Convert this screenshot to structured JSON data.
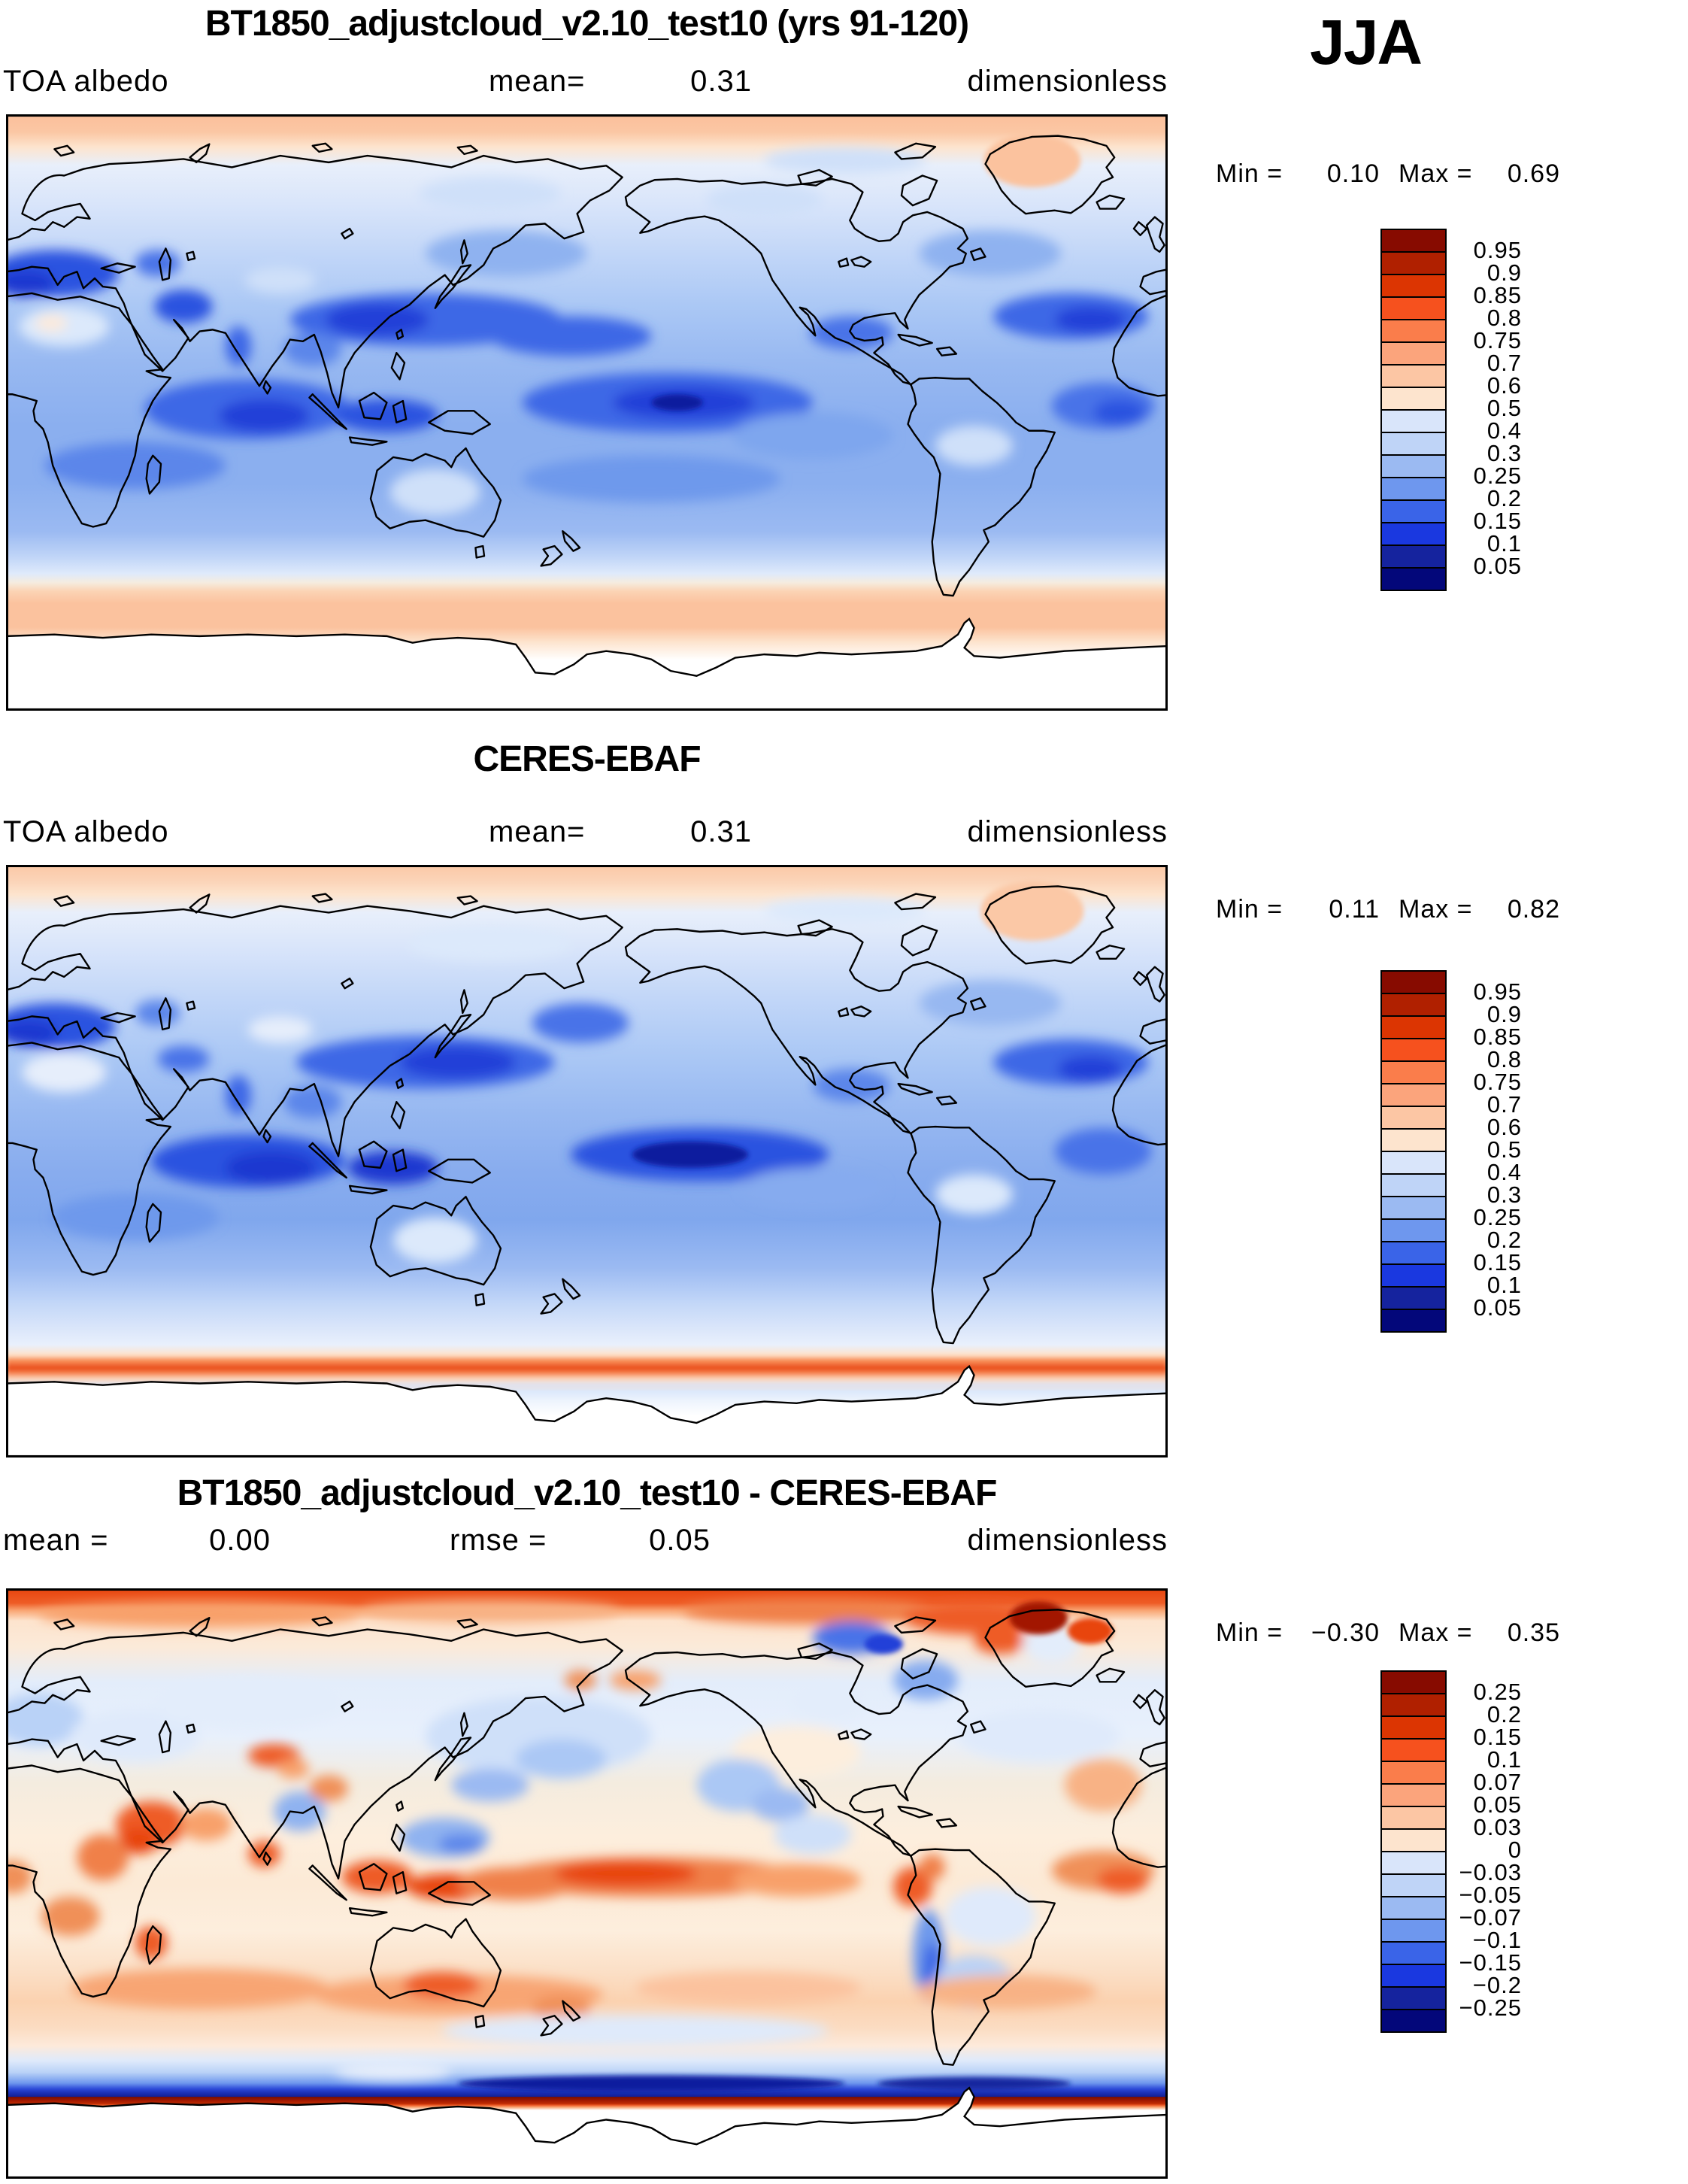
{
  "season_label": "JJA",
  "palette": [
    "#870b00",
    "#b02000",
    "#dc3502",
    "#f6511e",
    "#fa7d4b",
    "#fba47c",
    "#fcc6a4",
    "#fde4ce",
    "#d9e5fa",
    "#bfd4f7",
    "#9bbaf2",
    "#6e97ee",
    "#3a64e8",
    "#1a38e0",
    "#15239e",
    "#03077a"
  ],
  "albedo_levels": [
    "0.95",
    "0.9",
    "0.85",
    "0.8",
    "0.75",
    "0.7",
    "0.6",
    "0.5",
    "0.4",
    "0.3",
    "0.25",
    "0.2",
    "0.15",
    "0.1",
    "0.05"
  ],
  "diff_levels": [
    "0.25",
    "0.2",
    "0.15",
    "0.1",
    "0.07",
    "0.05",
    "0.03",
    "0",
    "−0.03",
    "−0.05",
    "−0.07",
    "−0.1",
    "−0.15",
    "−0.2",
    "−0.25"
  ],
  "panels": [
    {
      "title": "BT1850_adjustcloud_v2.10_test10 (yrs 91-120)",
      "var_label": "TOA albedo",
      "stat1_label": "mean=",
      "stat1_value": "0.31",
      "units": "dimensionless",
      "min_label": "Min  =",
      "min_value": "0.10",
      "max_label": "Max  =",
      "max_value": "0.69"
    },
    {
      "title": "CERES-EBAF",
      "var_label": "TOA albedo",
      "stat1_label": "mean=",
      "stat1_value": "0.31",
      "units": "dimensionless",
      "min_label": "Min  =",
      "min_value": "0.11",
      "max_label": "Max  =",
      "max_value": "0.82"
    },
    {
      "title": "BT1850_adjustcloud_v2.10_test10 - CERES-EBAF",
      "stat1_label": "mean  =",
      "stat1_value": "0.00",
      "stat2_label": "rmse  =",
      "stat2_value": "0.05",
      "units": "dimensionless",
      "min_label": "Min  =",
      "min_value": "−0.30",
      "max_label": "Max  =",
      "max_value": "0.35"
    }
  ],
  "chart_data": [
    {
      "type": "heatmap",
      "title": "BT1850_adjustcloud_v2.10_test10 (yrs 91-120)",
      "variable": "TOA albedo",
      "season": "JJA",
      "units": "dimensionless",
      "mean": 0.31,
      "min": 0.1,
      "max": 0.69,
      "levels": [
        0.05,
        0.1,
        0.15,
        0.2,
        0.25,
        0.3,
        0.4,
        0.5,
        0.6,
        0.7,
        0.75,
        0.8,
        0.85,
        0.9,
        0.95
      ],
      "palette_low_to_high": [
        "#03077a",
        "#15239e",
        "#1a38e0",
        "#3a64e8",
        "#6e97ee",
        "#9bbaf2",
        "#bfd4f7",
        "#d9e5fa",
        "#fde4ce",
        "#fcc6a4",
        "#fba47c",
        "#fa7d4b",
        "#f6511e",
        "#dc3502",
        "#b02000",
        "#870b00"
      ],
      "projection": "global cylindrical lat-lon, Pacific-centered (0E at left edge)",
      "legend_position": "right",
      "grid": false
    },
    {
      "type": "heatmap",
      "title": "CERES-EBAF",
      "variable": "TOA albedo",
      "season": "JJA",
      "units": "dimensionless",
      "mean": 0.31,
      "min": 0.11,
      "max": 0.82,
      "levels": [
        0.05,
        0.1,
        0.15,
        0.2,
        0.25,
        0.3,
        0.4,
        0.5,
        0.6,
        0.7,
        0.75,
        0.8,
        0.85,
        0.9,
        0.95
      ],
      "projection": "global cylindrical lat-lon, Pacific-centered (0E at left edge)",
      "legend_position": "right",
      "grid": false
    },
    {
      "type": "heatmap",
      "title": "BT1850_adjustcloud_v2.10_test10 - CERES-EBAF",
      "variable": "TOA albedo difference",
      "season": "JJA",
      "units": "dimensionless",
      "mean": 0.0,
      "rmse": 0.05,
      "min": -0.3,
      "max": 0.35,
      "levels": [
        -0.25,
        -0.2,
        -0.15,
        -0.1,
        -0.07,
        -0.05,
        -0.03,
        0,
        0.03,
        0.05,
        0.07,
        0.1,
        0.15,
        0.2,
        0.25
      ],
      "projection": "global cylindrical lat-lon, Pacific-centered (0E at left edge)",
      "legend_position": "right",
      "grid": false
    }
  ]
}
